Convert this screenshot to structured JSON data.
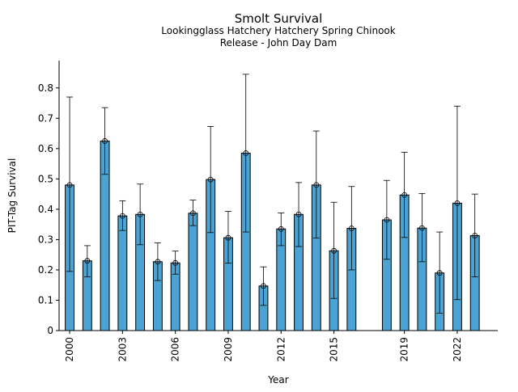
{
  "chart_data": {
    "type": "bar",
    "title": "Smolt Survival",
    "subtitle_lines": [
      "Lookingglass Hatchery Hatchery Spring Chinook",
      "Release - John Day Dam"
    ],
    "xlabel": "Year",
    "ylabel": "PIT-Tag Survival",
    "ylim": [
      0,
      0.89
    ],
    "y_ticks": [
      0,
      0.1,
      0.2,
      0.3,
      0.4,
      0.5,
      0.6,
      0.7,
      0.8
    ],
    "x_ticks": [
      2000,
      2003,
      2006,
      2009,
      2012,
      2015,
      2019,
      2022
    ],
    "bar_color": "#4aa3d3",
    "error_bars": true,
    "grid": false,
    "points": [
      {
        "year": 2000,
        "value": 0.48,
        "lower": 0.195,
        "upper": 0.77
      },
      {
        "year": 2001,
        "value": 0.23,
        "lower": 0.177,
        "upper": 0.28
      },
      {
        "year": 2002,
        "value": 0.625,
        "lower": 0.515,
        "upper": 0.735
      },
      {
        "year": 2003,
        "value": 0.378,
        "lower": 0.33,
        "upper": 0.428
      },
      {
        "year": 2004,
        "value": 0.383,
        "lower": 0.283,
        "upper": 0.483
      },
      {
        "year": 2005,
        "value": 0.227,
        "lower": 0.165,
        "upper": 0.289
      },
      {
        "year": 2006,
        "value": 0.223,
        "lower": 0.186,
        "upper": 0.262
      },
      {
        "year": 2007,
        "value": 0.387,
        "lower": 0.346,
        "upper": 0.43
      },
      {
        "year": 2008,
        "value": 0.498,
        "lower": 0.323,
        "upper": 0.673
      },
      {
        "year": 2009,
        "value": 0.306,
        "lower": 0.222,
        "upper": 0.393
      },
      {
        "year": 2010,
        "value": 0.585,
        "lower": 0.325,
        "upper": 0.845
      },
      {
        "year": 2011,
        "value": 0.147,
        "lower": 0.083,
        "upper": 0.21
      },
      {
        "year": 2012,
        "value": 0.335,
        "lower": 0.28,
        "upper": 0.388
      },
      {
        "year": 2013,
        "value": 0.383,
        "lower": 0.277,
        "upper": 0.488
      },
      {
        "year": 2014,
        "value": 0.48,
        "lower": 0.305,
        "upper": 0.658
      },
      {
        "year": 2015,
        "value": 0.263,
        "lower": 0.106,
        "upper": 0.423
      },
      {
        "year": 2016,
        "value": 0.337,
        "lower": 0.2,
        "upper": 0.475
      },
      {
        "year": 2018,
        "value": 0.365,
        "lower": 0.235,
        "upper": 0.495
      },
      {
        "year": 2019,
        "value": 0.447,
        "lower": 0.307,
        "upper": 0.588
      },
      {
        "year": 2020,
        "value": 0.338,
        "lower": 0.227,
        "upper": 0.452
      },
      {
        "year": 2021,
        "value": 0.19,
        "lower": 0.057,
        "upper": 0.325
      },
      {
        "year": 2022,
        "value": 0.42,
        "lower": 0.102,
        "upper": 0.74
      },
      {
        "year": 2023,
        "value": 0.313,
        "lower": 0.177,
        "upper": 0.45
      }
    ]
  }
}
